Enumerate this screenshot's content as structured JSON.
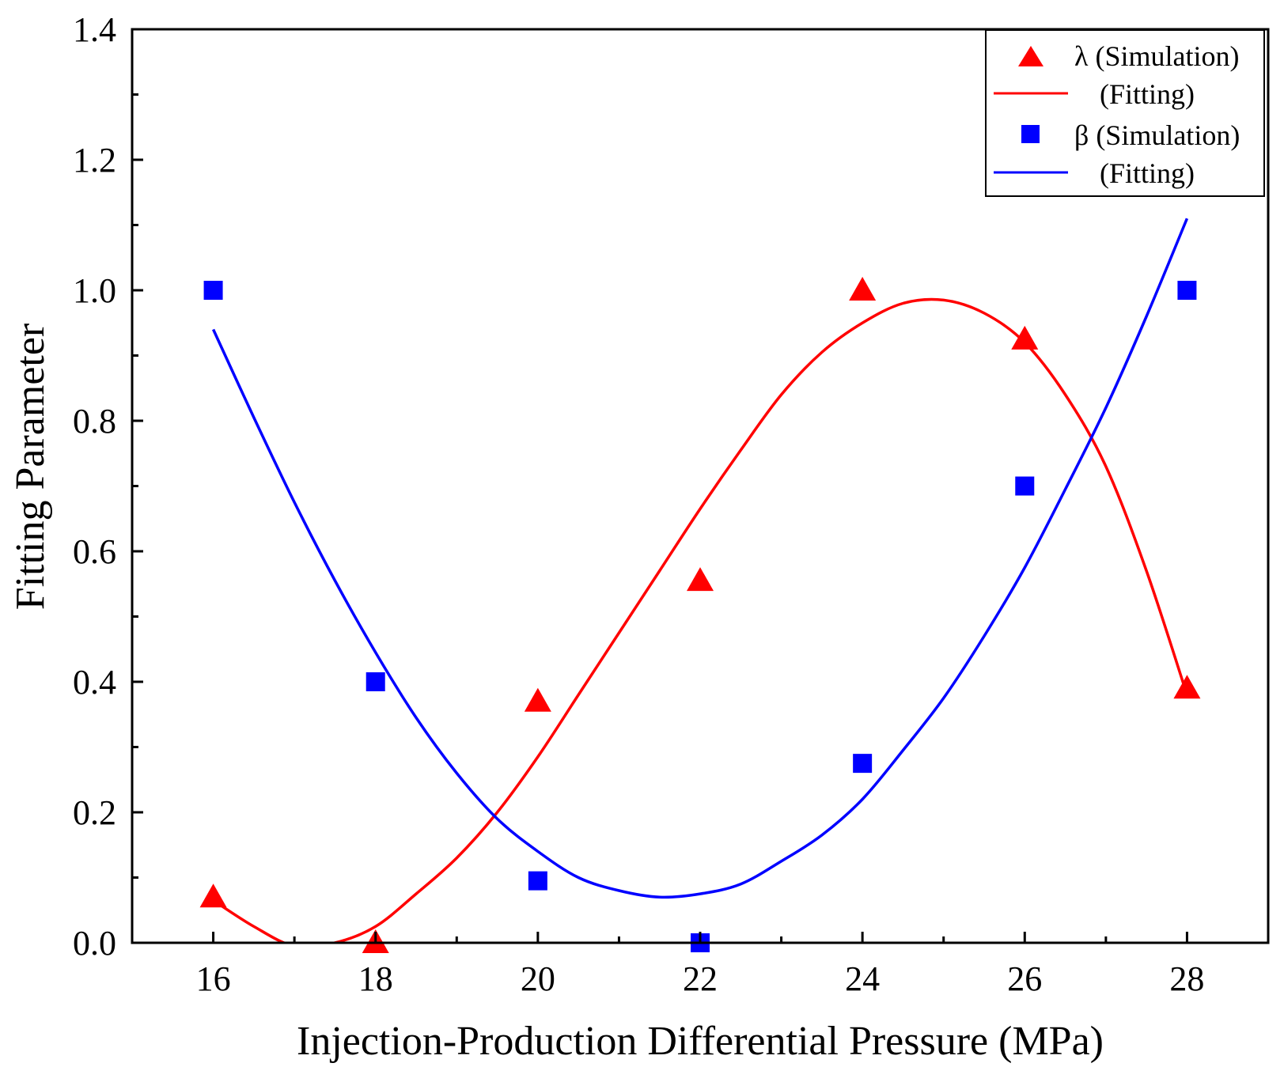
{
  "chart_data": {
    "type": "scatter",
    "title": "",
    "xlabel": "Injection-Production Differential Pressure (MPa)",
    "ylabel": "Fitting Parameter",
    "xlim": [
      15,
      29
    ],
    "ylim": [
      0,
      1.4
    ],
    "x_ticks": [
      16,
      18,
      20,
      22,
      24,
      26,
      28
    ],
    "x_tick_labels": [
      "16",
      "18",
      "20",
      "22",
      "24",
      "26",
      "28"
    ],
    "y_ticks": [
      0,
      0.2,
      0.4,
      0.6,
      0.8,
      1.0,
      1.2,
      1.4
    ],
    "y_tick_labels": [
      "0.0",
      "0.2",
      "0.4",
      "0.6",
      "0.8",
      "1.0",
      "1.2",
      "1.4"
    ],
    "grid": false,
    "legend_position": "top-right",
    "series": [
      {
        "name": "λ (Simulation)",
        "kind": "scatter",
        "marker": "triangle",
        "color": "#ff0000",
        "x": [
          16,
          18,
          20,
          22,
          24,
          26,
          28
        ],
        "values": [
          0.07,
          0.0,
          0.37,
          0.555,
          1.0,
          0.925,
          0.39
        ]
      },
      {
        "name": "(Fitting)",
        "kind": "line",
        "color": "#ff0000",
        "fit_of": "λ (Simulation)",
        "x": [
          16,
          16.5,
          17,
          17.5,
          18,
          18.5,
          19,
          19.5,
          20,
          20.5,
          21,
          21.5,
          22,
          22.5,
          23,
          23.5,
          24,
          24.5,
          25,
          25.5,
          26,
          26.5,
          27,
          27.5,
          28
        ],
        "values": [
          0.065,
          0.025,
          -0.005,
          0.0,
          0.025,
          0.075,
          0.13,
          0.2,
          0.285,
          0.38,
          0.475,
          0.57,
          0.665,
          0.755,
          0.84,
          0.905,
          0.95,
          0.98,
          0.985,
          0.965,
          0.92,
          0.84,
          0.73,
          0.57,
          0.38
        ]
      },
      {
        "name": "β (Simulation)",
        "kind": "scatter",
        "marker": "square",
        "color": "#0000ff",
        "x": [
          16,
          18,
          20,
          22,
          24,
          26,
          28
        ],
        "values": [
          1.0,
          0.4,
          0.095,
          0.0,
          0.275,
          0.7,
          1.0
        ]
      },
      {
        "name": "(Fitting)",
        "kind": "line",
        "color": "#0000ff",
        "fit_of": "β (Simulation)",
        "x": [
          16,
          16.5,
          17,
          17.5,
          18,
          18.5,
          19,
          19.5,
          20,
          20.5,
          21,
          21.5,
          22,
          22.5,
          23,
          23.5,
          24,
          24.5,
          25,
          25.5,
          26,
          26.5,
          27,
          27.5,
          28
        ],
        "values": [
          0.94,
          0.805,
          0.675,
          0.555,
          0.445,
          0.345,
          0.26,
          0.19,
          0.14,
          0.1,
          0.08,
          0.07,
          0.075,
          0.09,
          0.125,
          0.165,
          0.22,
          0.295,
          0.375,
          0.47,
          0.575,
          0.695,
          0.82,
          0.96,
          1.11
        ]
      }
    ]
  }
}
